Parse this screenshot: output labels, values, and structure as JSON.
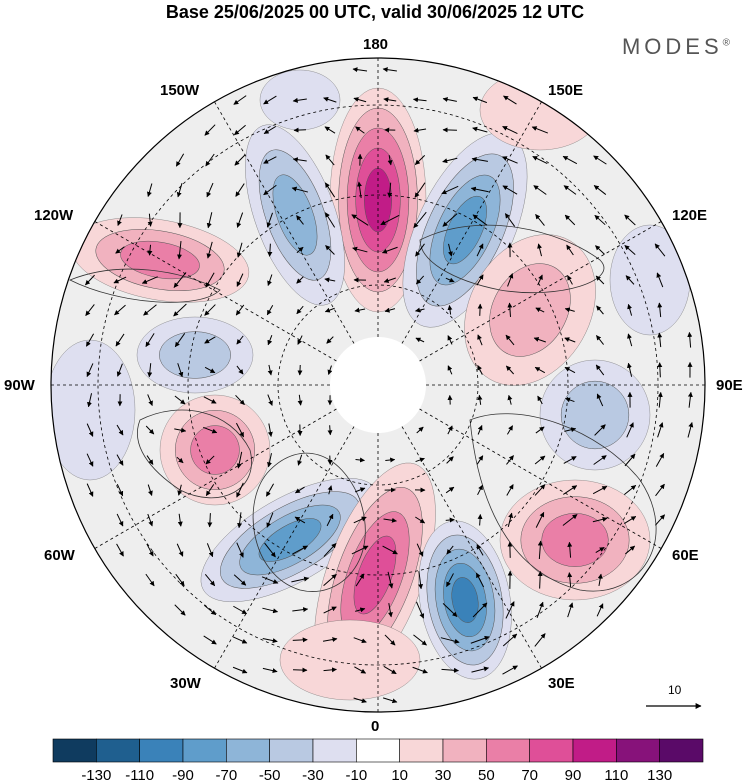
{
  "title": "Base 25/06/2025 00 UTC, valid 30/06/2025 12 UTC",
  "brand": "MODES",
  "brand_mark": "®",
  "lon_labels": {
    "n180": "180",
    "w150": "150W",
    "e150": "150E",
    "w120": "120W",
    "e120": "120E",
    "w90": "90W",
    "e90": "90E",
    "w60": "60W",
    "e60": "60E",
    "w30": "30W",
    "e30": "30E",
    "s0": "0"
  },
  "vector_reference": "10",
  "colorbar": {
    "labels": [
      "-130",
      "-110",
      "-90",
      "-70",
      "-50",
      "-30",
      "-10",
      "10",
      "30",
      "50",
      "70",
      "90",
      "110",
      "130"
    ],
    "colors": [
      "#0f3b5f",
      "#1f5f8f",
      "#3a82b9",
      "#5f9dcb",
      "#8eb5d8",
      "#b9c9e2",
      "#dedff0",
      "#ffffff",
      "#f8d7d8",
      "#f1b2bf",
      "#ea7fa7",
      "#df4f98",
      "#c11c87",
      "#87127a",
      "#5a0a68"
    ]
  },
  "map_elements": {
    "anomaly_fields": "anomaly-contours",
    "wind_vectors": "wind-vector-arrows",
    "graticule": "graticule-lines",
    "coastlines": "coastline-outlines"
  }
}
